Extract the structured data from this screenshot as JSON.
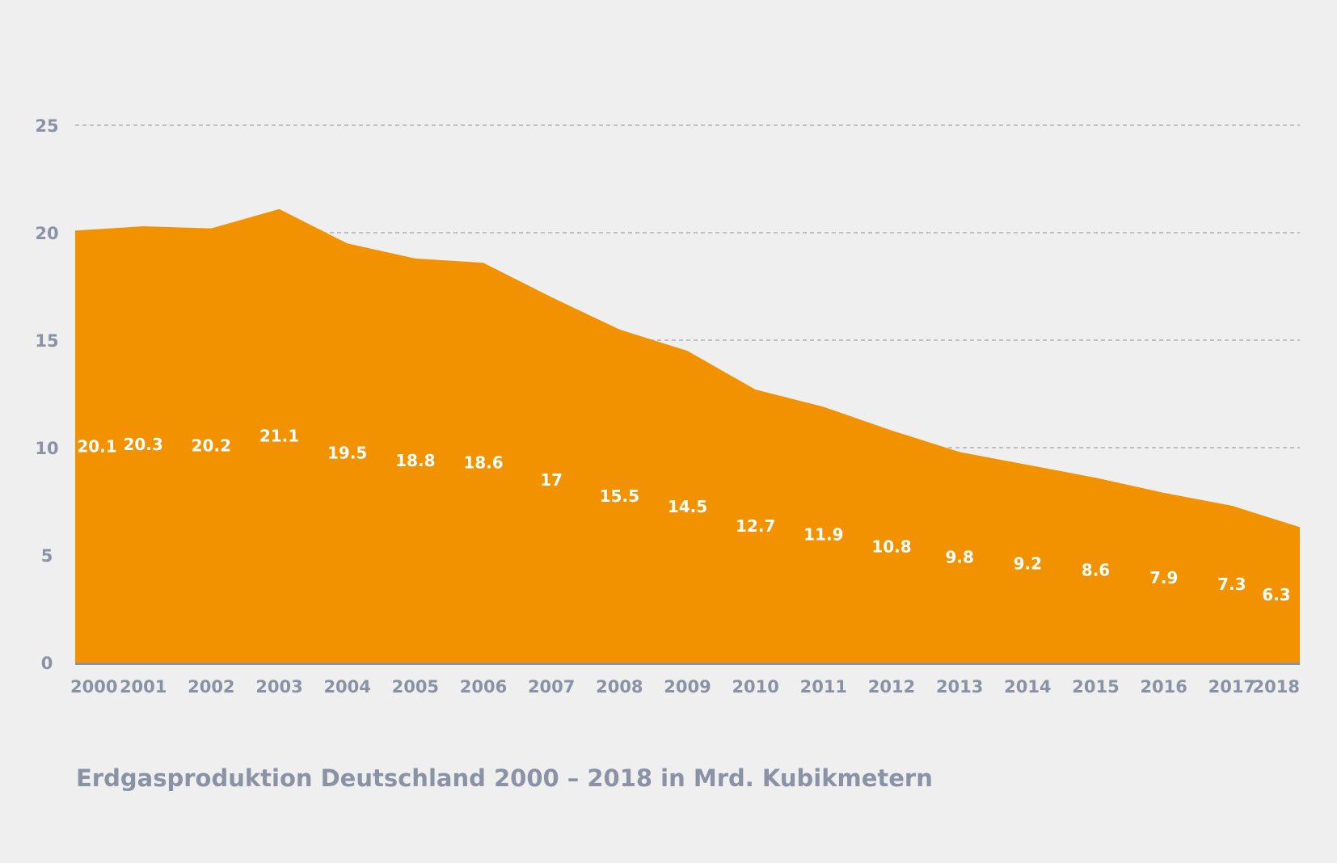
{
  "colors": {
    "background": "#efefef",
    "area_fill": "#f29200",
    "axis_text": "#8a93a6",
    "value_text": "#ffffff",
    "grid": "#a3a3a3",
    "baseline": "#8a93a6"
  },
  "caption": "Erdgasproduktion Deutschland 2000 – 2018 in Mrd. Kubikmetern",
  "chart_data": {
    "type": "area",
    "title": "",
    "xlabel": "",
    "ylabel": "",
    "categories": [
      "2000",
      "2001",
      "2002",
      "2003",
      "2004",
      "2005",
      "2006",
      "2007",
      "2008",
      "2009",
      "2010",
      "2011",
      "2012",
      "2013",
      "2014",
      "2015",
      "2016",
      "2017",
      "2018"
    ],
    "series": [
      {
        "values": [
          20.1,
          20.3,
          20.2,
          21.1,
          19.5,
          18.8,
          18.6,
          17,
          15.5,
          14.5,
          12.7,
          11.9,
          10.8,
          9.8,
          9.2,
          8.6,
          7.9,
          7.3,
          6.3
        ],
        "labels": [
          "20.1",
          "20.3",
          "20.2",
          "21.1",
          "19.5",
          "18.8",
          "18.6",
          "17",
          "15.5",
          "14.5",
          "12.7",
          "11.9",
          "10.8",
          "9.8",
          "9.2",
          "8.6",
          "7.9",
          "7.3",
          "6.3"
        ]
      }
    ],
    "ylim": [
      0,
      25
    ],
    "y_ticks": [
      "0",
      "5",
      "10",
      "15",
      "20",
      "25"
    ],
    "grid": true,
    "legend": "none"
  }
}
